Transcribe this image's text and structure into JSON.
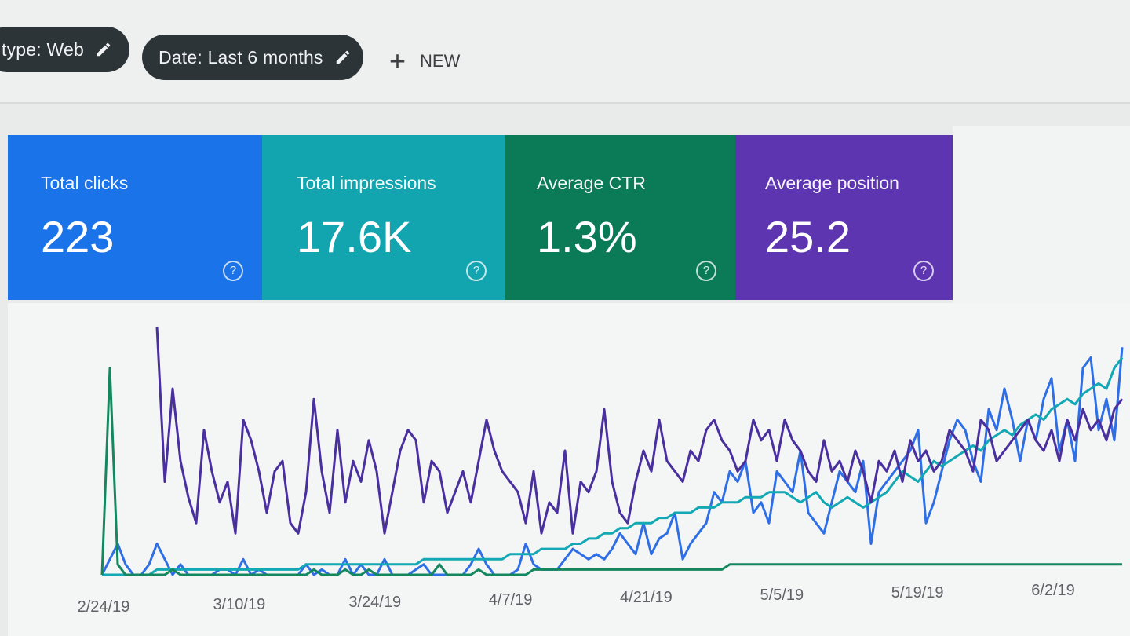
{
  "filters": {
    "type_chip": "type: Web",
    "date_chip": "Date: Last 6 months",
    "new_label": "NEW"
  },
  "metrics": [
    {
      "label": "Total clicks",
      "value": "223",
      "color": "#1a73e8"
    },
    {
      "label": "Total impressions",
      "value": "17.6K",
      "color": "#12a4af"
    },
    {
      "label": "Average CTR",
      "value": "1.3%",
      "color": "#0b7a57"
    },
    {
      "label": "Average position",
      "value": "25.2",
      "color": "#5e35b1"
    }
  ],
  "chart_data": {
    "type": "line",
    "x_ticks": [
      "2/24/19",
      "3/10/19",
      "3/24/19",
      "4/7/19",
      "4/21/19",
      "5/5/19",
      "5/19/19",
      "6/2/19"
    ],
    "series": [
      {
        "name": "Total clicks",
        "color": "#2f6fe6",
        "values": [
          0,
          3,
          6,
          2,
          0,
          0,
          2,
          6,
          3,
          0,
          2,
          0,
          0,
          0,
          0,
          1,
          1,
          0,
          3,
          0,
          1,
          0,
          0,
          0,
          0,
          0,
          2,
          0,
          1,
          0,
          0,
          3,
          0,
          2,
          0,
          0,
          3,
          0,
          0,
          0,
          1,
          2,
          0,
          0,
          0,
          0,
          0,
          2,
          5,
          2,
          0,
          0,
          0,
          1,
          6,
          2,
          1,
          1,
          1,
          3,
          5,
          4,
          3,
          4,
          3,
          5,
          8,
          6,
          4,
          10,
          4,
          7,
          8,
          12,
          3,
          6,
          8,
          10,
          16,
          14,
          20,
          18,
          22,
          12,
          14,
          10,
          20,
          18,
          16,
          24,
          12,
          10,
          8,
          14,
          20,
          18,
          16,
          22,
          6,
          16,
          18,
          20,
          22,
          24,
          28,
          10,
          14,
          20,
          26,
          30,
          28,
          22,
          18,
          32,
          28,
          36,
          30,
          22,
          30,
          26,
          34,
          38,
          24,
          30,
          22,
          40,
          42,
          28,
          34,
          26,
          44
        ]
      },
      {
        "name": "Total impressions",
        "color": "#12a8b4",
        "values": [
          0,
          0,
          0,
          0,
          0,
          0,
          0,
          1,
          1,
          1,
          1,
          1,
          1,
          1,
          1,
          1,
          1,
          1,
          1,
          1,
          1,
          1,
          1,
          1,
          1,
          1,
          2,
          2,
          2,
          2,
          2,
          2,
          2,
          2,
          2,
          2,
          2,
          2,
          2,
          2,
          2,
          3,
          3,
          3,
          3,
          3,
          3,
          3,
          3,
          3,
          3,
          3,
          4,
          4,
          4,
          4,
          5,
          5,
          5,
          5,
          6,
          6,
          7,
          7,
          8,
          8,
          9,
          9,
          10,
          10,
          10,
          11,
          11,
          12,
          12,
          12,
          13,
          13,
          13,
          14,
          14,
          14,
          15,
          15,
          15,
          16,
          16,
          16,
          15,
          14,
          15,
          16,
          14,
          13,
          14,
          15,
          14,
          13,
          14,
          15,
          16,
          18,
          20,
          19,
          18,
          20,
          22,
          21,
          22,
          23,
          24,
          25,
          24,
          26,
          27,
          28,
          27,
          29,
          30,
          31,
          30,
          32,
          33,
          34,
          33,
          35,
          36,
          37,
          36,
          40,
          42
        ]
      },
      {
        "name": "Average CTR",
        "color": "#14875e",
        "values": [
          0,
          40,
          2,
          0,
          0,
          0,
          0,
          0,
          0,
          1,
          0,
          0,
          0,
          0,
          0,
          0,
          0,
          0,
          0,
          0,
          0,
          0,
          0,
          0,
          0,
          0,
          0,
          1,
          0,
          0,
          0,
          1,
          0,
          0,
          1,
          0,
          0,
          0,
          0,
          0,
          0,
          0,
          0,
          2,
          0,
          0,
          0,
          0,
          1,
          0,
          0,
          0,
          0,
          0,
          0,
          1,
          1,
          1,
          1,
          1,
          1,
          1,
          1,
          1,
          1,
          1,
          1,
          1,
          1,
          1,
          1,
          1,
          1,
          1,
          1,
          1,
          1,
          1,
          1,
          1,
          2,
          2,
          2,
          2,
          2,
          2,
          2,
          2,
          2,
          2,
          2,
          2,
          2,
          2,
          2,
          2,
          2,
          2,
          2,
          2,
          2,
          2,
          2,
          2,
          2,
          2,
          2,
          2,
          2,
          2,
          2,
          2,
          2,
          2,
          2,
          2,
          2,
          2,
          2,
          2,
          2,
          2,
          2,
          2,
          2,
          2,
          2,
          2,
          2,
          2,
          2
        ]
      },
      {
        "name": "Average position",
        "color": "#4a2f9e",
        "values": [
          null,
          null,
          null,
          null,
          null,
          null,
          null,
          48,
          18,
          36,
          22,
          15,
          10,
          28,
          20,
          14,
          18,
          8,
          30,
          26,
          20,
          12,
          20,
          22,
          10,
          8,
          16,
          34,
          20,
          12,
          28,
          14,
          22,
          18,
          26,
          20,
          8,
          16,
          24,
          28,
          26,
          14,
          22,
          20,
          12,
          16,
          20,
          14,
          22,
          30,
          24,
          20,
          18,
          16,
          10,
          20,
          8,
          14,
          12,
          24,
          8,
          18,
          16,
          20,
          32,
          18,
          12,
          10,
          18,
          24,
          20,
          30,
          22,
          20,
          18,
          24,
          22,
          28,
          30,
          26,
          24,
          20,
          22,
          30,
          26,
          28,
          22,
          30,
          26,
          24,
          20,
          18,
          26,
          20,
          22,
          18,
          24,
          20,
          14,
          22,
          20,
          24,
          18,
          26,
          22,
          24,
          20,
          22,
          28,
          26,
          24,
          20,
          30,
          28,
          22,
          24,
          26,
          28,
          30,
          26,
          24,
          28,
          22,
          30,
          26,
          32,
          28,
          30,
          26,
          32,
          34
        ]
      }
    ],
    "grid": false
  }
}
